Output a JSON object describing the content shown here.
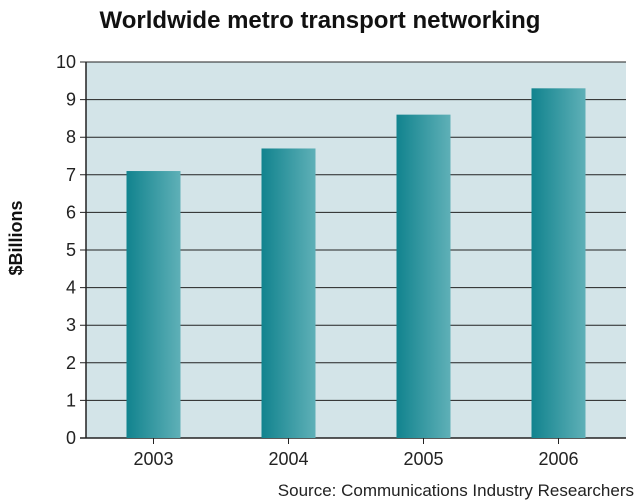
{
  "chart_data": {
    "type": "bar",
    "title": "Worldwide metro transport networking",
    "ylabel": "$Billions",
    "xlabel": "",
    "categories": [
      "2003",
      "2004",
      "2005",
      "2006"
    ],
    "values": [
      7.1,
      7.7,
      8.6,
      9.3
    ],
    "ylim": [
      0,
      10
    ],
    "yticks": [
      "0",
      "1",
      "2",
      "3",
      "4",
      "5",
      "6",
      "7",
      "8",
      "9",
      "10"
    ],
    "grid": true,
    "legend": "none",
    "source": "Source: Communications Industry Researchers"
  },
  "colors": {
    "plot_background": "#d3e4e8",
    "bar_left": "#11838e",
    "bar_right": "#5fb0b7",
    "gridline": "#222222"
  }
}
